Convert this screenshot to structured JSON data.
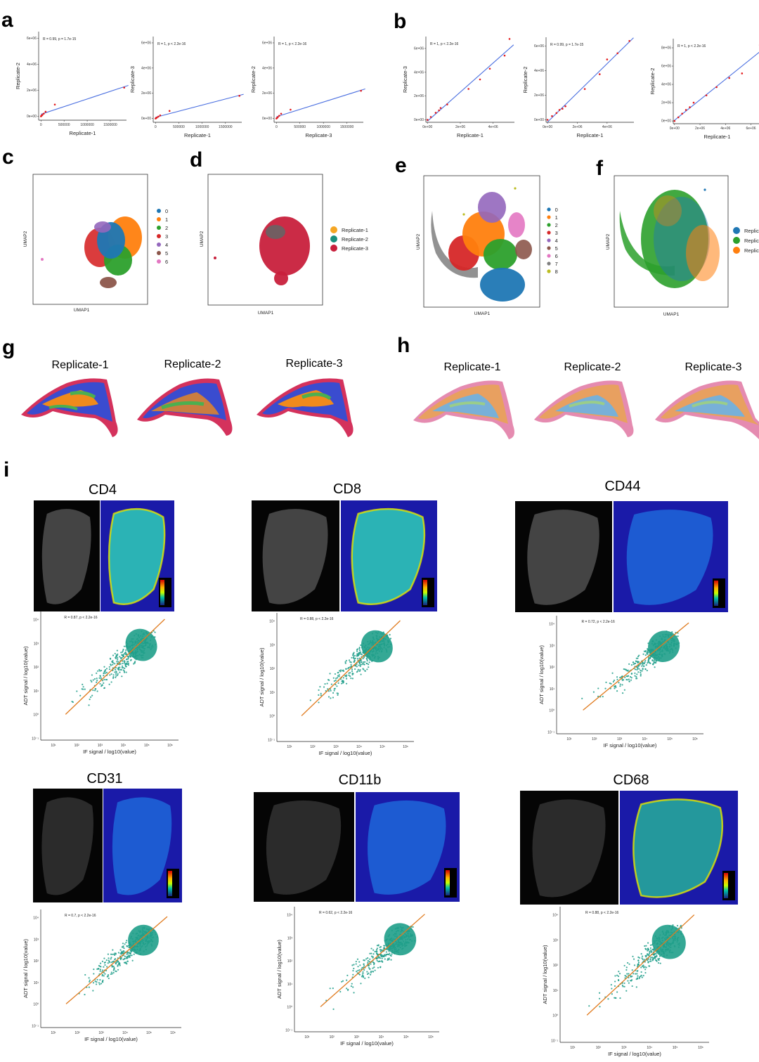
{
  "panels": {
    "a": "a",
    "b": "b",
    "c": "c",
    "d": "d",
    "e": "e",
    "f": "f",
    "g": "g",
    "h": "h",
    "i": "i"
  },
  "colors": {
    "fit_line_blue": "#4a6fe0",
    "fit_line_orange": "#e07b1f",
    "point_red": "#e31a1c",
    "point_teal": "#1f9e89"
  },
  "panel_a": [
    {
      "annotation": "R = 0.99, p = 1.7e-15",
      "xlabel": "Replicate-1",
      "ylabel": "Replicate-2",
      "xticks": [
        "0",
        "500000",
        "1000000",
        "1500000"
      ],
      "yticks": [
        "0e+00",
        "2e+06",
        "4e+06",
        "6e+06"
      ]
    },
    {
      "annotation": "R = 1, p < 2.2e-16",
      "xlabel": "Replicate-1",
      "ylabel": "Replicate-3",
      "xticks": [
        "0",
        "500000",
        "1000000",
        "1500000"
      ],
      "yticks": [
        "0e+00",
        "2e+06",
        "4e+06",
        "6e+06"
      ]
    },
    {
      "annotation": "R = 1, p < 2.2e-16",
      "xlabel": "Replicate-3",
      "ylabel": "Replicate-2",
      "xticks": [
        "0",
        "500000",
        "1000000",
        "1500000"
      ],
      "yticks": [
        "0e+00",
        "2e+06",
        "4e+06",
        "6e+06"
      ]
    }
  ],
  "panel_b": [
    {
      "annotation": "R = 1, p < 2.2e-16",
      "xlabel": "Replicate-1",
      "ylabel": "Replicate-3",
      "xticks": [
        "0e+00",
        "2e+06",
        "4e+06"
      ],
      "yticks": [
        "0e+00",
        "2e+06",
        "4e+06",
        "6e+06"
      ]
    },
    {
      "annotation": "R = 0.99, p = 1.7e-15",
      "xlabel": "Replicate-1",
      "ylabel": "Replicate-2",
      "xticks": [
        "0e+00",
        "2e+06",
        "4e+06"
      ],
      "yticks": [
        "0e+00",
        "2e+06",
        "4e+06",
        "6e+06"
      ]
    },
    {
      "annotation": "R = 1, p < 2.2e-16",
      "xlabel": "Replicate-1",
      "ylabel": "Replicate-2",
      "xticks": [
        "0e+00",
        "2e+06",
        "4e+06",
        "6e+06"
      ],
      "yticks": [
        "0e+00",
        "2e+06",
        "4e+06",
        "6e+06",
        "8e+06"
      ]
    }
  ],
  "umap": {
    "xlabel": "UMAP1",
    "ylabel": "UMAP2",
    "c_legend": [
      {
        "label": "0",
        "color": "#1f77b4"
      },
      {
        "label": "1",
        "color": "#ff7f0e"
      },
      {
        "label": "2",
        "color": "#2ca02c"
      },
      {
        "label": "3",
        "color": "#d62728"
      },
      {
        "label": "4",
        "color": "#9467bd"
      },
      {
        "label": "5",
        "color": "#8c564b"
      },
      {
        "label": "6",
        "color": "#e377c2"
      }
    ],
    "d_legend": [
      {
        "label": "Replicate-1",
        "color": "#f5a623"
      },
      {
        "label": "Replicate-2",
        "color": "#1a8f7c"
      },
      {
        "label": "Replicate-3",
        "color": "#c8203c"
      }
    ],
    "e_legend": [
      {
        "label": "0",
        "color": "#1f77b4"
      },
      {
        "label": "1",
        "color": "#ff7f0e"
      },
      {
        "label": "2",
        "color": "#2ca02c"
      },
      {
        "label": "3",
        "color": "#d62728"
      },
      {
        "label": "4",
        "color": "#9467bd"
      },
      {
        "label": "5",
        "color": "#8c564b"
      },
      {
        "label": "6",
        "color": "#e377c2"
      },
      {
        "label": "7",
        "color": "#7f7f7f"
      },
      {
        "label": "8",
        "color": "#bcbd22"
      }
    ],
    "f_legend": [
      {
        "label": "Replica",
        "color": "#1f77b4"
      },
      {
        "label": "Replica",
        "color": "#2ca02c"
      },
      {
        "label": "Replica",
        "color": "#ff7f0e"
      }
    ]
  },
  "panel_g": {
    "titles": [
      "Replicate-1",
      "Replicate-2",
      "Replicate-3"
    ]
  },
  "panel_h": {
    "titles": [
      "Replicate-1",
      "Replicate-2",
      "Replicate-3"
    ]
  },
  "panel_i": [
    {
      "marker": "CD4",
      "annotation": "R = 0.87, p < 2.2e-16"
    },
    {
      "marker": "CD8",
      "annotation": "R = 0.88, p < 2.2e-16"
    },
    {
      "marker": "CD44",
      "annotation": "R = 0.72, p < 2.2e-16"
    },
    {
      "marker": "CD31",
      "annotation": "R = 0.7, p < 2.2e-16"
    },
    {
      "marker": "CD11b",
      "annotation": "R = 0.62, p < 2.2e-16"
    },
    {
      "marker": "CD68",
      "annotation": "R = 0.88, p < 2.2e-16"
    }
  ],
  "panel_i_axes": {
    "xlabel": "IF signal / log10(value)",
    "ylabel": "ADT signal / log10(value)"
  },
  "chart_data": [
    {
      "type": "scatter",
      "title": "",
      "xlabel": "Replicate-1",
      "ylabel": "Replicate-2",
      "xlim": [
        -50000,
        1850000
      ],
      "ylim": [
        -300000,
        6500000
      ],
      "series": [
        {
          "x": [
            0,
            10000,
            30000,
            60000,
            100000,
            300000,
            1800000
          ],
          "y": [
            0,
            40000,
            100000,
            200000,
            350000,
            900000,
            2200000
          ]
        }
      ]
    },
    {
      "type": "scatter",
      "title": "",
      "xlabel": "Replicate-1",
      "ylabel": "Replicate-3",
      "xlim": [
        -50000,
        1850000
      ],
      "ylim": [
        -300000,
        6500000
      ],
      "series": [
        {
          "x": [
            0,
            10000,
            30000,
            60000,
            100000,
            300000,
            1800000
          ],
          "y": [
            0,
            30000,
            80000,
            150000,
            250000,
            600000,
            1800000
          ]
        }
      ]
    },
    {
      "type": "scatter",
      "title": "",
      "xlabel": "Replicate-3",
      "ylabel": "Replicate-2",
      "xlim": [
        -50000,
        1850000
      ],
      "ylim": [
        -300000,
        6500000
      ],
      "series": [
        {
          "x": [
            0,
            10000,
            30000,
            60000,
            100000,
            300000,
            1800000
          ],
          "y": [
            0,
            40000,
            110000,
            220000,
            380000,
            700000,
            2200000
          ]
        }
      ]
    },
    {
      "type": "scatter",
      "title": "",
      "xlabel": "Replicate-1",
      "ylabel": "Replicate-3",
      "xlim": [
        -100000,
        5300000
      ],
      "ylim": [
        -200000,
        7000000
      ],
      "series": [
        {
          "x": [
            0,
            200000,
            500000,
            700000,
            800000,
            1200000,
            2500000,
            3200000,
            3800000,
            4700000,
            5000000
          ],
          "y": [
            0,
            250000,
            600000,
            800000,
            1000000,
            1300000,
            2600000,
            3400000,
            4300000,
            5400000,
            6800000
          ]
        }
      ]
    },
    {
      "type": "scatter",
      "title": "",
      "xlabel": "Replicate-1",
      "ylabel": "Replicate-2",
      "xlim": [
        -100000,
        5800000
      ],
      "ylim": [
        -200000,
        6700000
      ],
      "series": [
        {
          "x": [
            0,
            300000,
            600000,
            800000,
            1000000,
            1200000,
            2500000,
            3500000,
            4000000,
            4700000,
            5500000
          ],
          "y": [
            0,
            300000,
            550000,
            800000,
            900000,
            1100000,
            2500000,
            3700000,
            4900000,
            5400000,
            6400000
          ]
        }
      ]
    },
    {
      "type": "scatter",
      "title": "",
      "xlabel": "Replicate-1",
      "ylabel": "Replicate-2",
      "xlim": [
        -100000,
        6800000
      ],
      "ylim": [
        -300000,
        9000000
      ],
      "series": [
        {
          "x": [
            0,
            300000,
            600000,
            900000,
            1200000,
            1500000,
            2500000,
            3300000,
            4300000,
            5300000,
            6700000
          ],
          "y": [
            0,
            400000,
            800000,
            1200000,
            1500000,
            2000000,
            2800000,
            3700000,
            4700000,
            5200000,
            8300000
          ]
        }
      ]
    }
  ]
}
